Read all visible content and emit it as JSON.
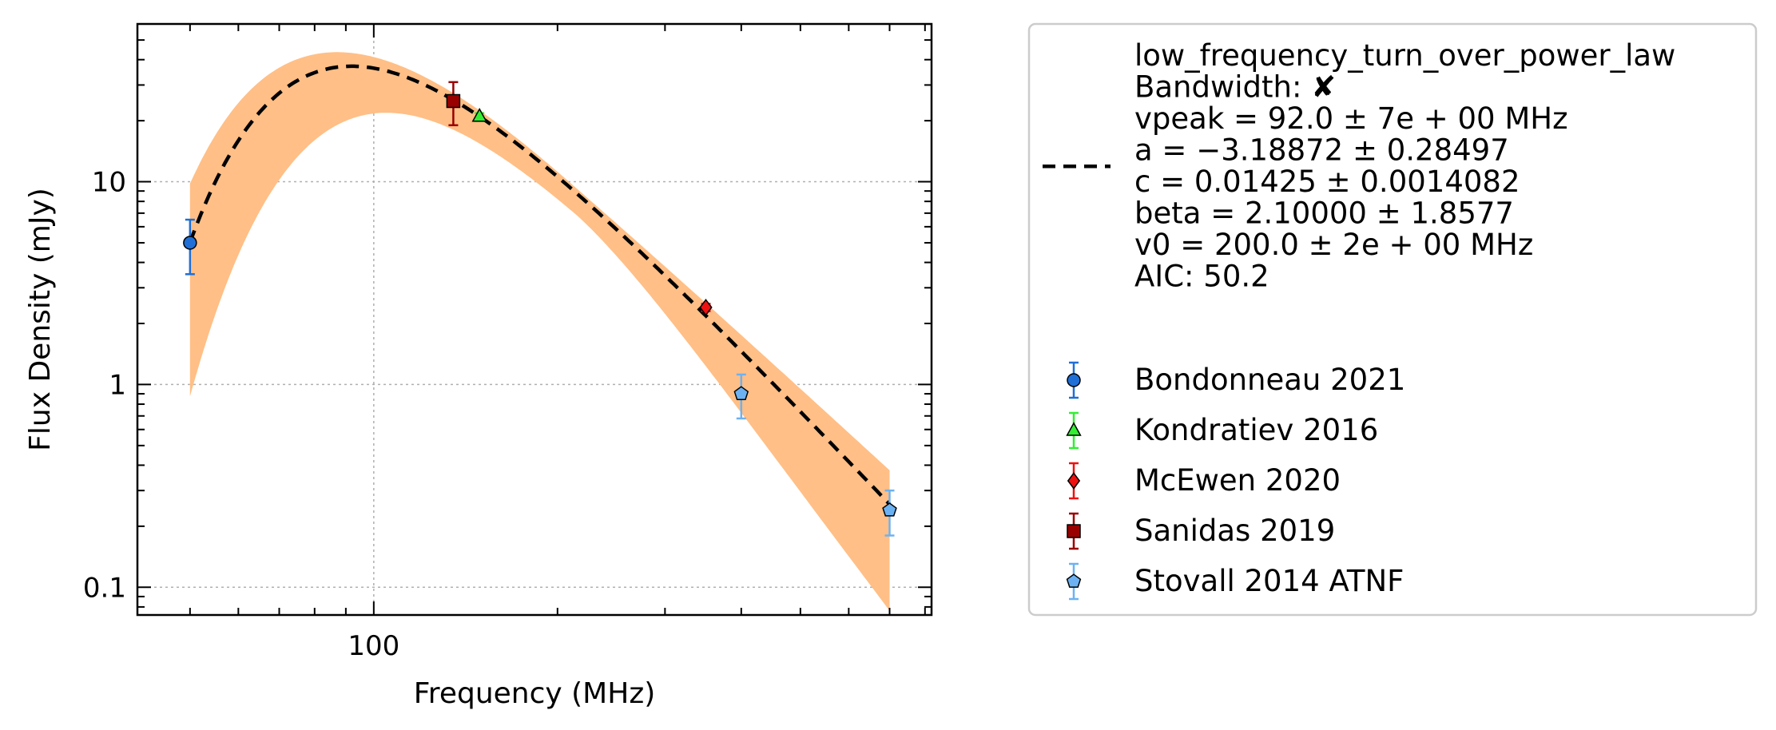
{
  "chart_data": {
    "type": "scatter",
    "xlabel": "Frequency (MHz)",
    "ylabel": "Flux Density (mJy)",
    "xscale": "log",
    "yscale": "log",
    "xlim": [
      41,
      820
    ],
    "ylim": [
      0.073,
      60
    ],
    "grid": true,
    "legend_placement": "outside-right",
    "xticks": [
      {
        "value": 100,
        "label": "100"
      }
    ],
    "yticks": [
      {
        "value": 0.1,
        "label": "0.1"
      },
      {
        "value": 1,
        "label": "1"
      },
      {
        "value": 10,
        "label": "10"
      }
    ],
    "fit": {
      "model": "low_frequency_turn_over_power_law",
      "bandwidth_label": "Bandwidth: ✘",
      "param_lines": [
        "vpeak = 92.0 ± 7e + 00 MHz",
        "a = −3.18872 ± 0.28497",
        "c = 0.01425 ± 0.0014082",
        "beta = 2.10000 ± 1.8577",
        "v0 = 200.0 ± 2e + 00 MHz"
      ],
      "aic_label": "AIC: 50.2",
      "params": {
        "vpeak": 92.0,
        "a": -3.18872,
        "c": 0.01425,
        "beta": 2.1,
        "v0": 200.0
      },
      "x_range": [
        50,
        700
      ],
      "line_color": "#000000",
      "band_color": "#ffbf86"
    },
    "series": [
      {
        "name": "Bondonneau 2021",
        "marker": "circle",
        "color": "#1f6fd6",
        "error_color": "#1f6fd6",
        "points": [
          {
            "x": 50,
            "y": 5.0,
            "err_low": 1.5,
            "err_high": 1.5
          }
        ]
      },
      {
        "name": "Kondratiev 2016",
        "marker": "triangle",
        "color": "#33ee33",
        "error_color": "#33ee33",
        "points": [
          {
            "x": 149,
            "y": 21.0,
            "err_low": 0.8,
            "err_high": 0.8
          }
        ]
      },
      {
        "name": "McEwen 2020",
        "marker": "diamond",
        "color": "#ee1111",
        "error_color": "#ee1111",
        "points": [
          {
            "x": 350,
            "y": 2.4,
            "err_low": 0.1,
            "err_high": 0.1
          }
        ]
      },
      {
        "name": "Sanidas 2019",
        "marker": "square",
        "color": "#990000",
        "error_color": "#990000",
        "points": [
          {
            "x": 135,
            "y": 25.0,
            "err_low": 6.0,
            "err_high": 6.0
          }
        ]
      },
      {
        "name": "Stovall 2014 ATNF",
        "marker": "pentagon",
        "color": "#6cb2f2",
        "error_color": "#6cb2f2",
        "points": [
          {
            "x": 400,
            "y": 0.9,
            "err_low": 0.22,
            "err_high": 0.22
          },
          {
            "x": 700,
            "y": 0.24,
            "err_low": 0.06,
            "err_high": 0.06
          }
        ]
      }
    ]
  }
}
